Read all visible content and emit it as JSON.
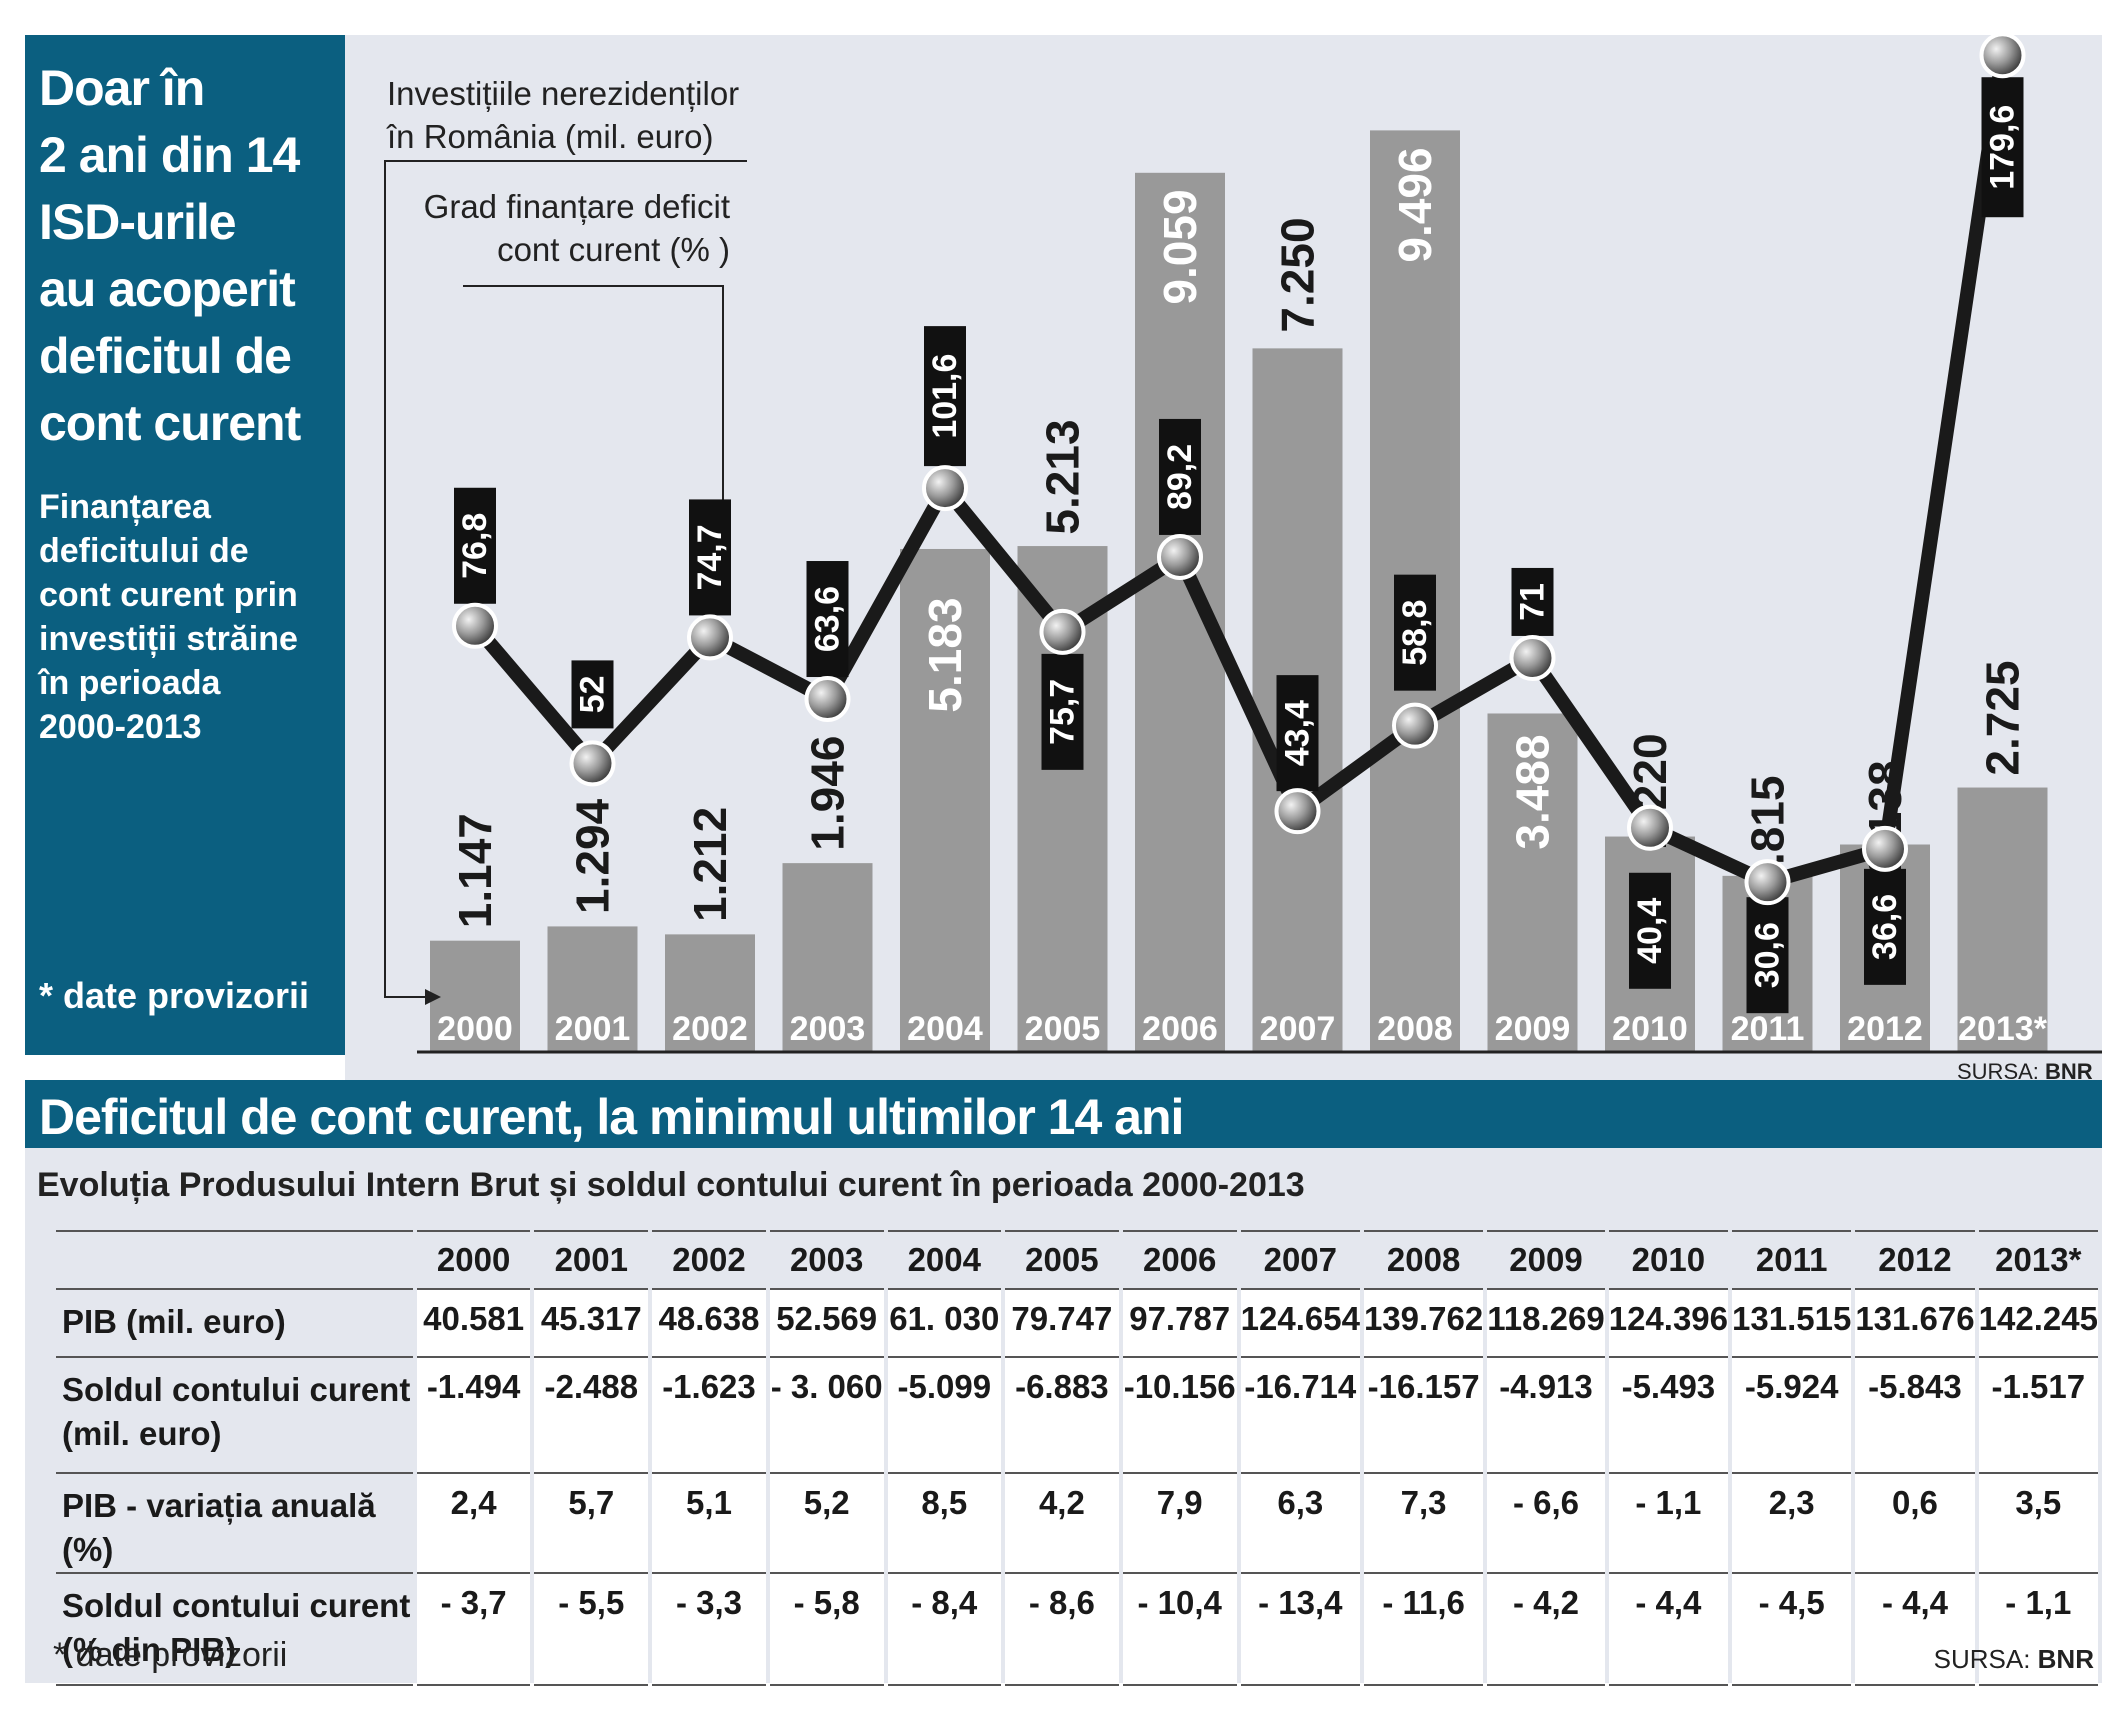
{
  "sidebar": {
    "title_lines": [
      "Doar în",
      "2 ani din 14",
      "ISD-urile",
      "au acoperit",
      "deficitul de",
      "cont curent"
    ],
    "subtitle_lines": [
      "Finanțarea",
      "deficitului de",
      "cont curent prin",
      "investiții străine",
      "în perioada",
      "2000-2013"
    ],
    "note": "* date provizorii"
  },
  "chart_data": {
    "type": "bar",
    "categories": [
      "2000",
      "2001",
      "2002",
      "2003",
      "2004",
      "2005",
      "2006",
      "2007",
      "2008",
      "2009",
      "2010",
      "2011",
      "2012",
      "2013*"
    ],
    "series": [
      {
        "name": "Investițiile nerezidenților în România (mil. euro)",
        "values": [
          1147,
          1294,
          1212,
          1946,
          5183,
          5213,
          9059,
          7250,
          9496,
          3488,
          2220,
          1815,
          2138,
          2725
        ],
        "labels": [
          "1.147",
          "1.294",
          "1.212",
          "1.946",
          "5.183",
          "5.213",
          "9.059",
          "7.250",
          "9.496",
          "3.488",
          "2.220",
          "1.815",
          "2.138",
          "2.725"
        ],
        "color": "#999999"
      },
      {
        "name": "Grad finanțare deficit cont curent (% )",
        "type": "line",
        "values": [
          76.8,
          52,
          74.7,
          63.6,
          101.6,
          75.7,
          89.2,
          43.4,
          58.8,
          71,
          40.4,
          30.6,
          36.6,
          179.6
        ],
        "labels": [
          "76,8",
          "52",
          "74,7",
          "63,6",
          "101,6",
          "75,7",
          "89,2",
          "43,4",
          "58,8",
          "71",
          "40,4",
          "30,6",
          "36,6",
          "179,6"
        ],
        "color": "#1a1a1a"
      }
    ],
    "legend_lines": {
      "investments": [
        "Investițiile nerezidenților",
        "în România (mil. euro)"
      ],
      "coverage": [
        "Grad finanțare deficit",
        "cont curent (% )"
      ]
    },
    "source_label": "SURSA: ",
    "source_value": "BNR"
  },
  "table": {
    "title": "Deficitul de cont curent, la minimul ultimilor 14 ani",
    "subtitle": "Evoluția Produsului Intern Brut și soldul contului curent în perioada 2000-2013",
    "years": [
      "2000",
      "2001",
      "2002",
      "2003",
      "2004",
      "2005",
      "2006",
      "2007",
      "2008",
      "2009",
      "2010",
      "2011",
      "2012",
      "2013*"
    ],
    "rows": [
      {
        "label": "PIB (mil. euro)",
        "values": [
          "40.581",
          "45.317",
          "48.638",
          "52.569",
          "61. 030",
          "79.747",
          "97.787",
          "124.654",
          "139.762",
          "118.269",
          "124.396",
          "131.515",
          "131.676",
          "142.245"
        ]
      },
      {
        "label_lines": [
          "Soldul contului curent",
          "(mil. euro)"
        ],
        "values": [
          "-1.494",
          "-2.488",
          "-1.623",
          "- 3. 060",
          "-5.099",
          "-6.883",
          "-10.156",
          "-16.714",
          "-16.157",
          "-4.913",
          "-5.493",
          "-5.924",
          "-5.843",
          "-1.517"
        ]
      },
      {
        "label": "PIB - variația anuală (%)",
        "values": [
          "2,4",
          "5,7",
          "5,1",
          "5,2",
          "8,5",
          "4,2",
          "7,9",
          "6,3",
          "7,3",
          "- 6,6",
          "- 1,1",
          "2,3",
          "0,6",
          "3,5"
        ]
      },
      {
        "label_lines": [
          "Soldul contului curent",
          "(% din PIB)"
        ],
        "values": [
          "- 3,7",
          "- 5,5",
          "- 3,3",
          "- 5,8",
          "- 8,4",
          "- 8,6",
          "- 10,4",
          "- 13,4",
          "- 11,6",
          "- 4,2",
          "- 4,4",
          "- 4,5",
          "- 4,4",
          "- 1,1"
        ]
      }
    ],
    "note": "* date provizorii",
    "source_label": "SURSA: ",
    "source_value": "BNR"
  }
}
